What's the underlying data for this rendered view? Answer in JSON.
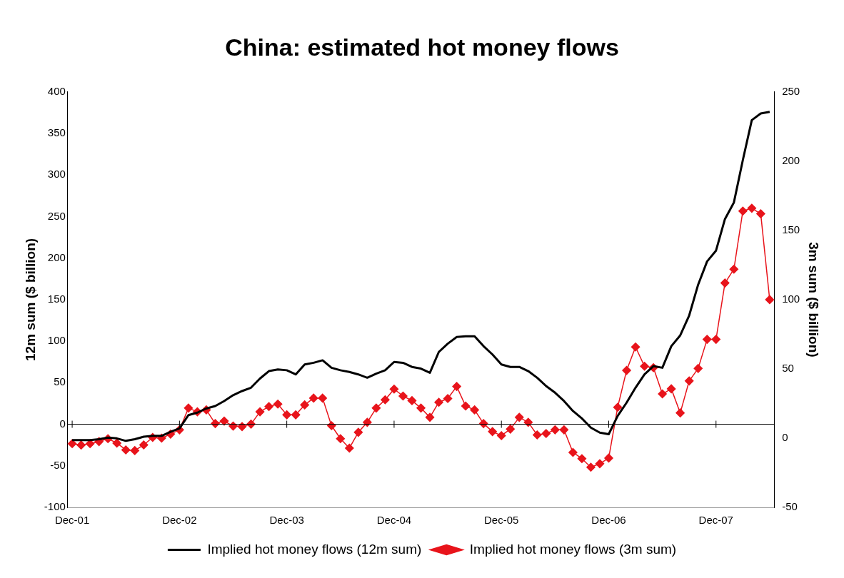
{
  "chart_data": {
    "type": "line",
    "title": "China: estimated hot money flows",
    "categories": [
      "Dec-01",
      null,
      null,
      null,
      null,
      null,
      null,
      null,
      null,
      null,
      null,
      null,
      "Dec-02",
      null,
      null,
      null,
      null,
      null,
      null,
      null,
      null,
      null,
      null,
      null,
      "Dec-03",
      null,
      null,
      null,
      null,
      null,
      null,
      null,
      null,
      null,
      null,
      null,
      "Dec-04",
      null,
      null,
      null,
      null,
      null,
      null,
      null,
      null,
      null,
      null,
      null,
      "Dec-05",
      null,
      null,
      null,
      null,
      null,
      null,
      null,
      null,
      null,
      null,
      null,
      "Dec-06",
      null,
      null,
      null,
      null,
      null,
      null,
      null,
      null,
      null,
      null,
      null,
      "Dec-07",
      null,
      null,
      null,
      null,
      null,
      null
    ],
    "ylabel": "12m sum ($ billion)",
    "y2label": "3m sum ($ billion)",
    "ylim": [
      -100,
      400
    ],
    "yticks": [
      -100,
      -50,
      0,
      50,
      100,
      150,
      200,
      250,
      300,
      350,
      400
    ],
    "y2lim": [
      -50,
      250
    ],
    "y2ticks": [
      -50,
      0,
      50,
      100,
      150,
      200,
      250
    ],
    "grid": false,
    "legend": "bottom",
    "ref_lines": [
      {
        "axis": "y",
        "value": 0,
        "color": "#000000"
      }
    ],
    "series": [
      {
        "name": "Implied hot money flows (12m sum)",
        "color": "#000000",
        "marker": "none",
        "values": [
          -19,
          -19,
          -19,
          -18,
          -16,
          -17,
          -20,
          -18,
          -15,
          -14,
          -14,
          -9,
          -5,
          11,
          14,
          19,
          22,
          28,
          35,
          40,
          44,
          55,
          64,
          66,
          65,
          60,
          72,
          74,
          77,
          68,
          65,
          63,
          60,
          56,
          61,
          65,
          75,
          74,
          69,
          67,
          62,
          87,
          97,
          105,
          106,
          106,
          94,
          84,
          72,
          69,
          69,
          64,
          56,
          46,
          38,
          28,
          16,
          7,
          -4,
          -10,
          -12,
          10,
          26,
          44,
          60,
          70,
          68,
          94,
          107,
          131,
          168,
          196,
          209,
          247,
          267,
          318,
          366,
          374,
          376
        ]
      },
      {
        "name": "Implied hot money flows (3m sum)",
        "color": "#e8141b",
        "marker": "diamond",
        "axis": "y2",
        "values": [
          -4,
          -5,
          -4,
          -2.5,
          -0.4,
          -3.6,
          -8.5,
          -9,
          -4.9,
          0.5,
          0,
          2.9,
          6,
          21.7,
          19,
          20.4,
          10.5,
          12.3,
          8.7,
          8.3,
          10.1,
          19,
          22.8,
          24.6,
          16.8,
          16.8,
          24,
          28.9,
          28.9,
          9,
          -0.4,
          -7.2,
          4.2,
          11.4,
          21.7,
          27.7,
          35.4,
          30.4,
          27.1,
          21.7,
          15,
          25.9,
          28.6,
          37.3,
          23.2,
          20.4,
          10.5,
          4.7,
          1.8,
          6.5,
          15,
          11.4,
          2.3,
          3.3,
          6,
          6,
          -10.3,
          -14.8,
          -21,
          -18.5,
          -14.4,
          22.3,
          48.9,
          65.8,
          51.9,
          50.9,
          31.9,
          35.6,
          18.2,
          41.3,
          50.3,
          71.3,
          71.3,
          112,
          122,
          164,
          166,
          162,
          100
        ]
      }
    ]
  }
}
